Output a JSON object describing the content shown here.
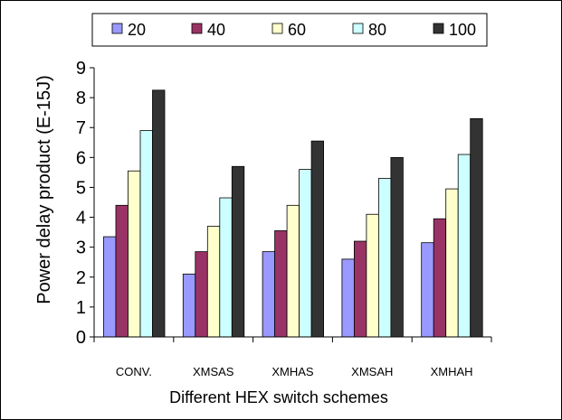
{
  "chart_data": {
    "type": "bar",
    "categories": [
      "CONV.",
      "XMSAS",
      "XMHAS",
      "XMSAH",
      "XMHAH"
    ],
    "series": [
      {
        "name": "20",
        "color": "#9999ff",
        "values": [
          3.35,
          2.1,
          2.85,
          2.6,
          3.15
        ]
      },
      {
        "name": "40",
        "color": "#993366",
        "values": [
          4.4,
          2.85,
          3.55,
          3.2,
          3.95
        ]
      },
      {
        "name": "60",
        "color": "#ffffcc",
        "values": [
          5.55,
          3.7,
          4.4,
          4.1,
          4.95
        ]
      },
      {
        "name": "80",
        "color": "#ccffff",
        "values": [
          6.9,
          4.65,
          5.6,
          5.3,
          6.1
        ]
      },
      {
        "name": "100",
        "color": "#333333",
        "values": [
          8.25,
          5.7,
          6.55,
          6.0,
          7.3
        ]
      }
    ],
    "title": "",
    "xlabel": "Different HEX switch schemes",
    "ylabel": "Power delay product (E-15J)",
    "ylim": [
      0,
      9
    ],
    "yticks": [
      0,
      1,
      2,
      3,
      4,
      5,
      6,
      7,
      8,
      9
    ],
    "grid": false,
    "legend": "top"
  }
}
